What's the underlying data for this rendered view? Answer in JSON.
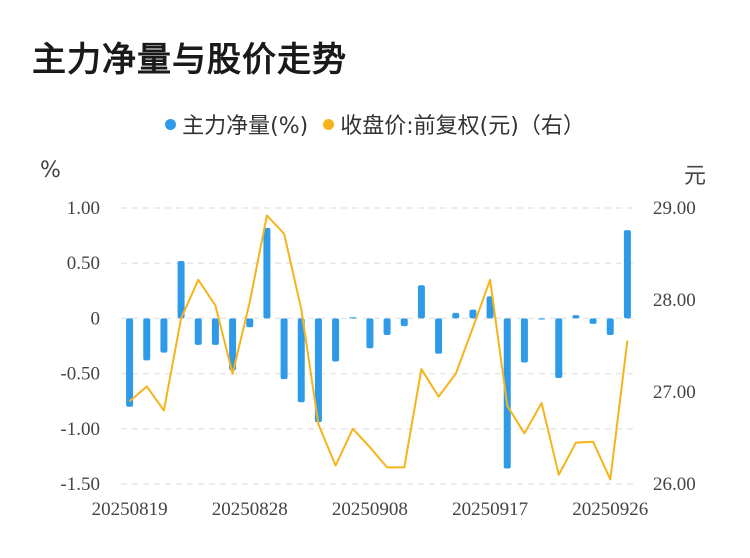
{
  "title": "主力净量与股价走势",
  "legend": [
    {
      "label": "主力净量(%)",
      "color": "#2f9be8"
    },
    {
      "label": "收盘价:前复权(元)（右）",
      "color": "#f5b41c"
    }
  ],
  "units": {
    "left": "%",
    "right": "元"
  },
  "chart_data": {
    "type": "bar+line",
    "x": [
      "20250819",
      "20250820",
      "20250821",
      "20250822",
      "20250825",
      "20250826",
      "20250827",
      "20250828",
      "20250829",
      "20250901",
      "20250902",
      "20250903",
      "20250904",
      "20250905",
      "20250908",
      "20250909",
      "20250910",
      "20250911",
      "20250912",
      "20250915",
      "20250916",
      "20250917",
      "20250918",
      "20250919",
      "20250922",
      "20250923",
      "20250924",
      "20250925",
      "20250926",
      "20250929"
    ],
    "x_tick_labels": [
      "20250819",
      "20250828",
      "20250908",
      "20250917",
      "20250926"
    ],
    "x_tick_index": [
      0,
      7,
      14,
      21,
      28
    ],
    "series": [
      {
        "name": "主力净量(%)",
        "type": "bar",
        "axis": "left",
        "color": "#2f9be8",
        "values": [
          -0.8,
          -0.38,
          -0.31,
          0.52,
          -0.24,
          -0.24,
          -0.47,
          -0.08,
          0.82,
          -0.55,
          -0.76,
          -0.94,
          -0.39,
          0.01,
          -0.27,
          -0.15,
          -0.07,
          0.3,
          -0.32,
          0.05,
          0.08,
          0.2,
          -1.36,
          -0.4,
          -0.01,
          -0.54,
          0.03,
          -0.05,
          -0.15,
          0.8
        ]
      },
      {
        "name": "收盘价:前复权(元)（右）",
        "type": "line",
        "axis": "right",
        "color": "#f5b41c",
        "values": [
          26.9,
          27.06,
          26.8,
          27.8,
          28.22,
          27.94,
          27.2,
          27.98,
          28.92,
          28.72,
          27.9,
          26.65,
          26.2,
          26.6,
          26.4,
          26.18,
          26.18,
          27.25,
          26.95,
          27.2,
          27.7,
          28.22,
          26.85,
          26.55,
          26.88,
          26.1,
          26.45,
          26.46,
          26.05,
          27.56
        ]
      }
    ],
    "y_left": {
      "min": -1.5,
      "max": 1.0,
      "ticks": [
        1.0,
        0.5,
        0,
        -0.5,
        -1.0,
        -1.5
      ],
      "tick_labels": [
        "1.00",
        "0.50",
        "0",
        "-0.50",
        "-1.00",
        "-1.50"
      ]
    },
    "y_right": {
      "min": 26.0,
      "max": 29.0,
      "ticks": [
        29.0,
        28.0,
        27.0,
        26.0
      ],
      "tick_labels": [
        "29.00",
        "28.00",
        "27.00",
        "26.00"
      ]
    },
    "grid": true
  }
}
